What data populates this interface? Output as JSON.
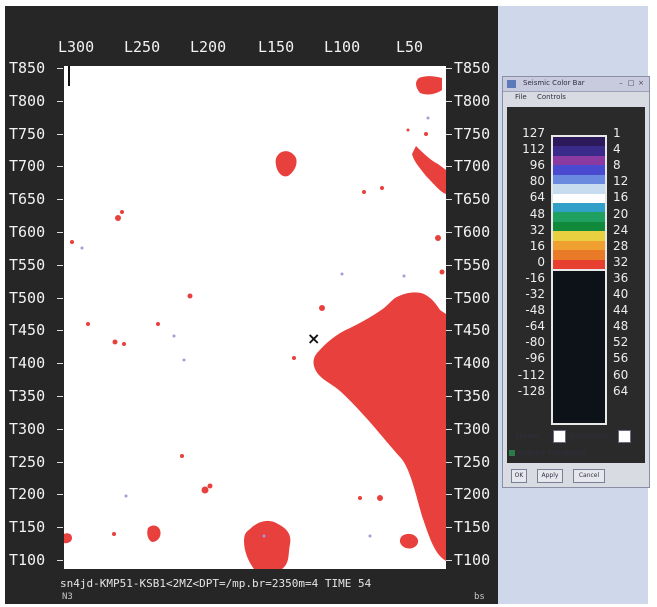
{
  "viewer": {
    "x_ticks": [
      "L300",
      "L250",
      "L200",
      "L150",
      "L100",
      "L50"
    ],
    "y_ticks": [
      "T850",
      "T800",
      "T750",
      "T700",
      "T650",
      "T600",
      "T550",
      "T500",
      "T450",
      "T400",
      "T350",
      "T300",
      "T250",
      "T200",
      "T150",
      "T100"
    ],
    "status_text": "sn4jd-KMP51-KSB1<2MZ<DPT=/mp.br=2350m=4   TIME 54",
    "status_left": "N3",
    "status_right": "bs",
    "marker_symbol": "×",
    "colors": {
      "background": "#262626",
      "plot": "#ffffff",
      "anomaly": "#e8403c"
    }
  },
  "color_bar": {
    "title": "Seismic Color Bar",
    "menu": [
      "File",
      "Controls"
    ],
    "left_labels": [
      "127",
      "112",
      "96",
      "80",
      "64",
      "48",
      "32",
      "16",
      "0",
      "-16",
      "-32",
      "-48",
      "-64",
      "-80",
      "-96",
      "-112",
      "-128"
    ],
    "right_labels": [
      "1",
      "4",
      "8",
      "12",
      "16",
      "20",
      "24",
      "28",
      "32",
      "36",
      "40",
      "44",
      "48",
      "52",
      "56",
      "60",
      "64"
    ],
    "swatch_colors": [
      "#2c1a5a",
      "#3a2a8a",
      "#8a3aa0",
      "#4a4ad0",
      "#6a8ae0",
      "#c8dcf0",
      "#ffffff",
      "#30a0c8",
      "#20a060",
      "#108a3a",
      "#e8d040",
      "#f0a030",
      "#e87a28",
      "#e84030"
    ],
    "sticker_label": "Sticker",
    "annotation_label": "Annotation",
    "interact_label": "Interact Interpolate",
    "buttons": [
      "OK",
      "Apply",
      "Cancel"
    ]
  }
}
